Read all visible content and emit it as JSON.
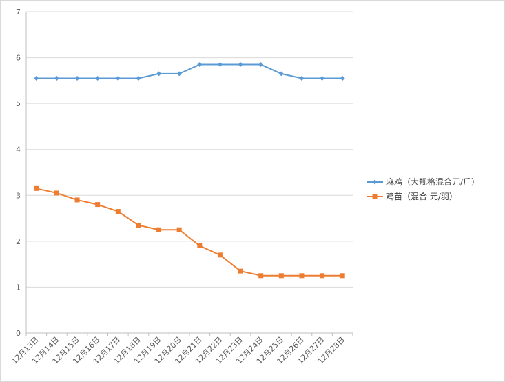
{
  "chart_data": {
    "type": "line",
    "title": "",
    "xlabel": "",
    "ylabel": "",
    "categories": [
      "12月13日",
      "12月14日",
      "12月15日",
      "12月16日",
      "12月17日",
      "12月18日",
      "12月19日",
      "12月20日",
      "12月21日",
      "12月22日",
      "12月23日",
      "12月24日",
      "12月25日",
      "12月26日",
      "12月27日",
      "12月28日"
    ],
    "ylim": [
      0,
      7
    ],
    "yticks": [
      0,
      1,
      2,
      3,
      4,
      5,
      6,
      7
    ],
    "grid": true,
    "legend_position": "right",
    "series": [
      {
        "name": "麻鸡（大规格混合元/斤）",
        "color": "#5b9bd5",
        "marker": "diamond",
        "values": [
          5.55,
          5.55,
          5.55,
          5.55,
          5.55,
          5.55,
          5.65,
          5.65,
          5.85,
          5.85,
          5.85,
          5.85,
          5.65,
          5.55,
          5.55,
          5.55
        ]
      },
      {
        "name": "鸡苗（混合 元/羽）",
        "color": "#ed7d31",
        "marker": "square",
        "values": [
          3.15,
          3.05,
          2.9,
          2.8,
          2.65,
          2.35,
          2.25,
          2.25,
          1.9,
          1.7,
          1.35,
          1.25,
          1.25,
          1.25,
          1.25,
          1.25
        ]
      }
    ]
  }
}
